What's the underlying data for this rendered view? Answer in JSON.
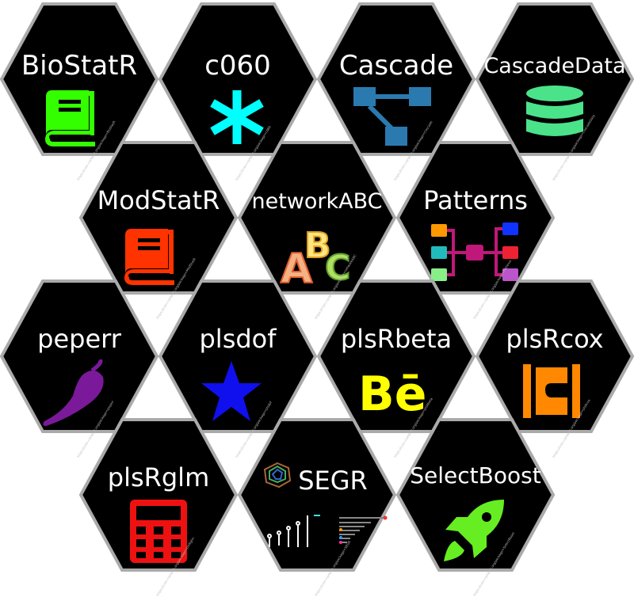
{
  "hexagons": [
    {
      "id": "biostatr",
      "name": "BioStatR",
      "url": "https://cran.r-project.org/package=BioStatR",
      "icon": "green-book-icon",
      "color": "#33ff00"
    },
    {
      "id": "c060",
      "name": "c060",
      "url": "https://cran.r-project.org/package=c060",
      "icon": "asterisk-icon",
      "color": "#00ffff"
    },
    {
      "id": "cascade",
      "name": "Cascade",
      "url": "https://cran.r-project.org/package=Cascade",
      "icon": "sitemap-icon",
      "color": "#2a7ab0"
    },
    {
      "id": "cascadedata",
      "name": "CascadeData",
      "url": "https://cran.r-project.org/package=CascadeData",
      "icon": "database-icon",
      "color": "#4be38a"
    },
    {
      "id": "modstatr",
      "name": "ModStatR",
      "url": "https://cran.r-project.org/package=ModStatR",
      "icon": "red-book-icon",
      "color": "#ff3300"
    },
    {
      "id": "networkabc",
      "name": "networkABC",
      "url": "https://cran.r-project.org/package=networkABC",
      "icon": "abc-letters-icon",
      "color": "#f0a030"
    },
    {
      "id": "patterns",
      "name": "Patterns",
      "url": "https://cran.r-project.org/package=Patterns",
      "icon": "pattern-network-icon",
      "color": "#c0187a"
    },
    {
      "id": "peperr",
      "name": "peperr",
      "url": "https://cran.r-project.org/package=peperr",
      "icon": "pepper-icon",
      "color": "#7a1a9a"
    },
    {
      "id": "plsdof",
      "name": "plsdof",
      "url": "https://cran.r-project.org/package=plsdof",
      "icon": "star-icon",
      "color": "#1010ee"
    },
    {
      "id": "plsrbeta",
      "name": "plsRbeta",
      "url": "https://cran.r-project.org/package=plsRbeta",
      "icon": "behance-icon",
      "color": "#ffff00"
    },
    {
      "id": "plsrcox",
      "name": "plsRcox",
      "url": "https://cran.r-project.org/package=plsRcox",
      "icon": "codiepie-icon",
      "color": "#ff8800"
    },
    {
      "id": "plsrglm",
      "name": "plsRglm",
      "url": "https://cran.r-project.org/package=plsRglm",
      "icon": "calculator-icon",
      "color": "#ee1111"
    },
    {
      "id": "segr",
      "name": "SEGR",
      "url": "https://cran.r-project.org/package=SEGR",
      "icon": "plot-thumbnails-icon",
      "color": "#44dddd"
    },
    {
      "id": "selectboost",
      "name": "SelectBoost",
      "url": "https://cran.r-project.org/package=SelectBoost",
      "icon": "rocket-icon",
      "color": "#66ee22"
    }
  ]
}
